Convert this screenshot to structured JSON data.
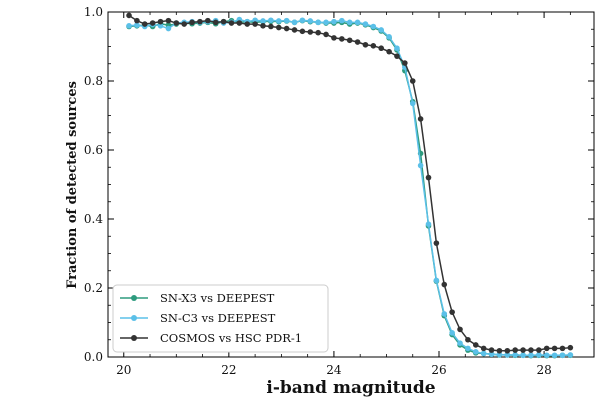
{
  "chart_data": {
    "type": "line",
    "xlabel": "i-band magnitude",
    "ylabel": "Fraction of detected sources",
    "xlim": [
      19.7,
      28.95
    ],
    "ylim": [
      0.0,
      1.0
    ],
    "xticks": [
      20,
      22,
      24,
      26,
      28
    ],
    "xtick_labels": [
      "20",
      "22",
      "24",
      "26",
      "28"
    ],
    "yticks": [
      0.0,
      0.2,
      0.4,
      0.6,
      0.8,
      1.0
    ],
    "ytick_labels": [
      "0.0",
      "0.2",
      "0.4",
      "0.6",
      "0.8",
      "1.0"
    ],
    "grid": false,
    "legend_position": "lower-left",
    "series": [
      {
        "name": "SN-X3 vs DEEPEST",
        "color": "#2e9b7e",
        "x": [
          20.1,
          20.25,
          20.4,
          20.55,
          20.7,
          20.85,
          21.0,
          21.15,
          21.3,
          21.45,
          21.6,
          21.75,
          21.9,
          22.05,
          22.2,
          22.35,
          22.5,
          22.65,
          22.8,
          22.95,
          23.1,
          23.25,
          23.4,
          23.55,
          23.7,
          23.85,
          24.0,
          24.15,
          24.3,
          24.45,
          24.6,
          24.75,
          24.9,
          25.05,
          25.2,
          25.35,
          25.5,
          25.65,
          25.8,
          25.95,
          26.1,
          26.25,
          26.4,
          26.55,
          26.7,
          26.85,
          27.0,
          27.15,
          27.3,
          27.45,
          27.6,
          27.75,
          27.9,
          28.05,
          28.2,
          28.35,
          28.5
        ],
        "values": [
          0.958,
          0.96,
          0.962,
          0.958,
          0.966,
          0.962,
          0.965,
          0.968,
          0.966,
          0.968,
          0.97,
          0.966,
          0.972,
          0.975,
          0.97,
          0.972,
          0.97,
          0.972,
          0.973,
          0.972,
          0.974,
          0.97,
          0.975,
          0.972,
          0.97,
          0.968,
          0.968,
          0.97,
          0.965,
          0.968,
          0.963,
          0.955,
          0.945,
          0.925,
          0.89,
          0.83,
          0.74,
          0.59,
          0.38,
          0.22,
          0.12,
          0.065,
          0.035,
          0.02,
          0.012,
          0.01,
          0.008,
          0.006,
          0.006,
          0.005,
          0.005,
          0.004,
          0.005,
          0.004,
          0.004,
          0.005,
          0.005
        ]
      },
      {
        "name": "SN-C3 vs DEEPEST",
        "color": "#5bc0e8",
        "x": [
          20.1,
          20.25,
          20.4,
          20.55,
          20.7,
          20.85,
          21.0,
          21.15,
          21.3,
          21.45,
          21.6,
          21.75,
          21.9,
          22.05,
          22.2,
          22.35,
          22.5,
          22.65,
          22.8,
          22.95,
          23.1,
          23.25,
          23.4,
          23.55,
          23.7,
          23.85,
          24.0,
          24.15,
          24.3,
          24.45,
          24.6,
          24.75,
          24.9,
          25.05,
          25.2,
          25.35,
          25.5,
          25.65,
          25.8,
          25.95,
          26.1,
          26.25,
          26.4,
          26.55,
          26.7,
          26.85,
          27.0,
          27.15,
          27.3,
          27.45,
          27.6,
          27.75,
          27.9,
          28.05,
          28.2,
          28.35,
          28.5
        ],
        "values": [
          0.96,
          0.962,
          0.958,
          0.964,
          0.96,
          0.952,
          0.968,
          0.97,
          0.972,
          0.97,
          0.972,
          0.975,
          0.968,
          0.97,
          0.978,
          0.972,
          0.976,
          0.974,
          0.976,
          0.974,
          0.975,
          0.97,
          0.976,
          0.974,
          0.97,
          0.97,
          0.972,
          0.975,
          0.97,
          0.97,
          0.965,
          0.958,
          0.948,
          0.928,
          0.895,
          0.84,
          0.735,
          0.555,
          0.385,
          0.222,
          0.125,
          0.07,
          0.04,
          0.025,
          0.015,
          0.01,
          0.008,
          0.007,
          0.006,
          0.006,
          0.005,
          0.005,
          0.006,
          0.005,
          0.005,
          0.005,
          0.006
        ]
      },
      {
        "name": "COSMOS vs HSC PDR-1",
        "color": "#333333",
        "x": [
          20.1,
          20.25,
          20.4,
          20.55,
          20.7,
          20.85,
          21.0,
          21.15,
          21.3,
          21.45,
          21.6,
          21.75,
          21.9,
          22.05,
          22.2,
          22.35,
          22.5,
          22.65,
          22.8,
          22.95,
          23.1,
          23.25,
          23.4,
          23.55,
          23.7,
          23.85,
          24.0,
          24.15,
          24.3,
          24.45,
          24.6,
          24.75,
          24.9,
          25.05,
          25.2,
          25.35,
          25.5,
          25.65,
          25.8,
          25.95,
          26.1,
          26.25,
          26.4,
          26.55,
          26.7,
          26.85,
          27.0,
          27.15,
          27.3,
          27.45,
          27.6,
          27.75,
          27.9,
          28.05,
          28.2,
          28.35,
          28.5
        ],
        "values": [
          0.99,
          0.975,
          0.965,
          0.968,
          0.972,
          0.975,
          0.968,
          0.965,
          0.97,
          0.972,
          0.975,
          0.97,
          0.972,
          0.968,
          0.968,
          0.965,
          0.965,
          0.96,
          0.958,
          0.955,
          0.952,
          0.948,
          0.944,
          0.942,
          0.94,
          0.935,
          0.925,
          0.922,
          0.918,
          0.913,
          0.905,
          0.902,
          0.895,
          0.885,
          0.872,
          0.852,
          0.8,
          0.69,
          0.52,
          0.33,
          0.21,
          0.13,
          0.08,
          0.05,
          0.035,
          0.025,
          0.02,
          0.018,
          0.018,
          0.02,
          0.02,
          0.02,
          0.02,
          0.025,
          0.025,
          0.025,
          0.027
        ]
      }
    ]
  }
}
